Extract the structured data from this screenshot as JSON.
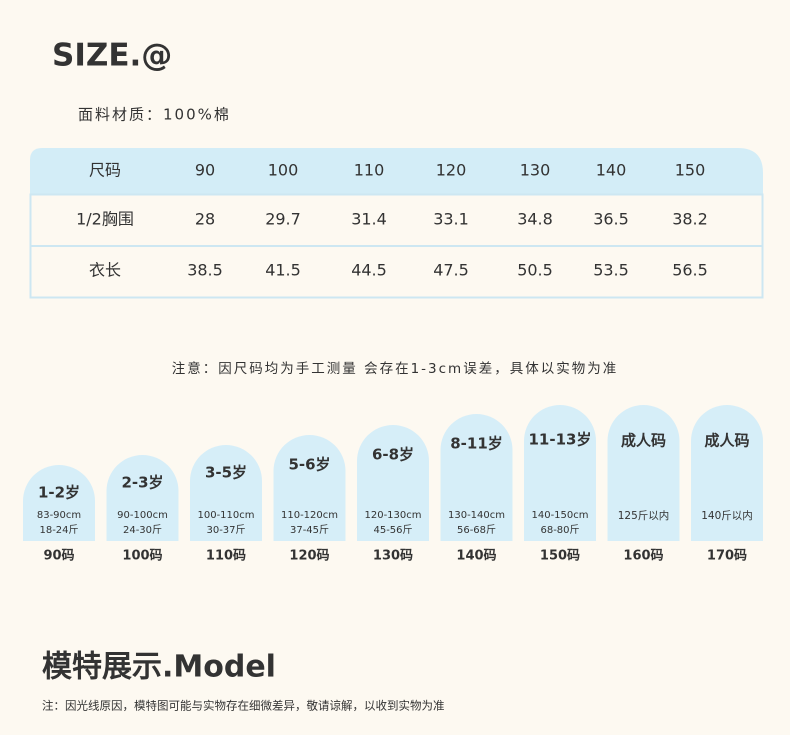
{
  "header": {
    "title": "SIZE.@",
    "material": "面料材质：100%棉"
  },
  "table": {
    "header": [
      "尺码",
      "90",
      "100",
      "110",
      "120",
      "130",
      "140",
      "150"
    ],
    "rows": [
      [
        "1/2胸围",
        "28",
        "29.7",
        "31.4",
        "33.1",
        "34.8",
        "36.5",
        "38.2"
      ],
      [
        "衣长",
        "38.5",
        "41.5",
        "44.5",
        "47.5",
        "50.5",
        "53.5",
        "56.5"
      ]
    ]
  },
  "note": "注意：因尺码均为手工测量 会存在1-3cm误差，具体以实物为准",
  "sizes": [
    {
      "age": "1-2岁",
      "height": "83-90cm",
      "weight": "18-24斤",
      "size": "90码"
    },
    {
      "age": "2-3岁",
      "height": "90-100cm",
      "weight": "24-30斤",
      "size": "100码"
    },
    {
      "age": "3-5岁",
      "height": "100-110cm",
      "weight": "30-37斤",
      "size": "110码"
    },
    {
      "age": "5-6岁",
      "height": "110-120cm",
      "weight": "37-45斤",
      "size": "120码"
    },
    {
      "age": "6-8岁",
      "height": "120-130cm",
      "weight": "45-56斤",
      "size": "130码"
    },
    {
      "age": "8-11岁",
      "height": "130-140cm",
      "weight": "56-68斤",
      "size": "140码"
    },
    {
      "age": "11-13岁",
      "height": "140-150cm",
      "weight": "68-80斤",
      "size": "150码"
    },
    {
      "age": "成人码",
      "weight": "125斤以内",
      "size": "160码"
    },
    {
      "age": "成人码",
      "weight": "140斤以内",
      "size": "170码"
    }
  ],
  "model": {
    "title": "模特展示.Model",
    "note": "注：因光线原因，模特图可能与实物存在细微差异，敬请谅解，以收到实物为准"
  }
}
